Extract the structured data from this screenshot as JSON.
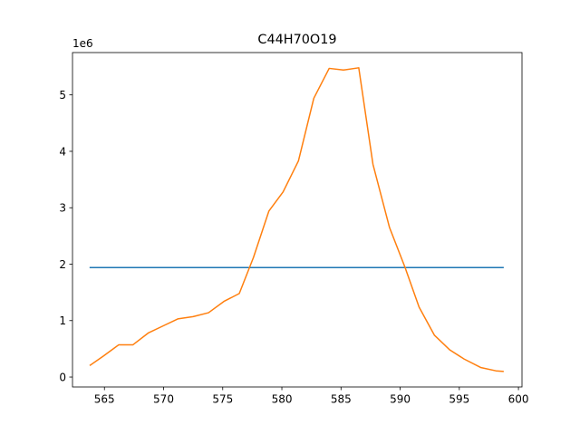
{
  "chart_data": {
    "type": "line",
    "title": "C44H70O19",
    "xlabel": "",
    "ylabel": "",
    "y_offset_text": "1e6",
    "xlim": [
      562.3,
      600.3
    ],
    "ylim": [
      -176000,
      5750000
    ],
    "x_ticks": [
      565,
      570,
      575,
      580,
      585,
      590,
      595,
      600
    ],
    "x_tick_labels": [
      "565",
      "570",
      "575",
      "580",
      "585",
      "590",
      "595",
      "600"
    ],
    "y_ticks": [
      0,
      1000000,
      2000000,
      3000000,
      4000000,
      5000000
    ],
    "y_tick_labels": [
      "0",
      "1",
      "2",
      "3",
      "4",
      "5"
    ],
    "grid": false,
    "legend": false,
    "series": [
      {
        "color": "#1f77b4",
        "x": [
          563.8,
          598.7
        ],
        "y": [
          1940000,
          1940000
        ]
      },
      {
        "color": "#ff7f0e",
        "x": [
          563.8,
          564.9,
          566.2,
          567.4,
          568.7,
          570.0,
          571.2,
          572.5,
          573.8,
          575.1,
          576.4,
          577.6,
          578.9,
          580.1,
          581.4,
          582.7,
          584.0,
          585.2,
          586.5,
          587.7,
          589.1,
          590.4,
          591.6,
          592.9,
          594.2,
          595.4,
          596.8,
          598.1,
          598.7
        ],
        "y": [
          210000,
          370000,
          570000,
          570000,
          780000,
          910000,
          1030000,
          1070000,
          1140000,
          1340000,
          1480000,
          2120000,
          2940000,
          3280000,
          3830000,
          4940000,
          5470000,
          5440000,
          5480000,
          3770000,
          2650000,
          1950000,
          1240000,
          740000,
          480000,
          320000,
          170000,
          110000,
          100000
        ]
      }
    ]
  }
}
